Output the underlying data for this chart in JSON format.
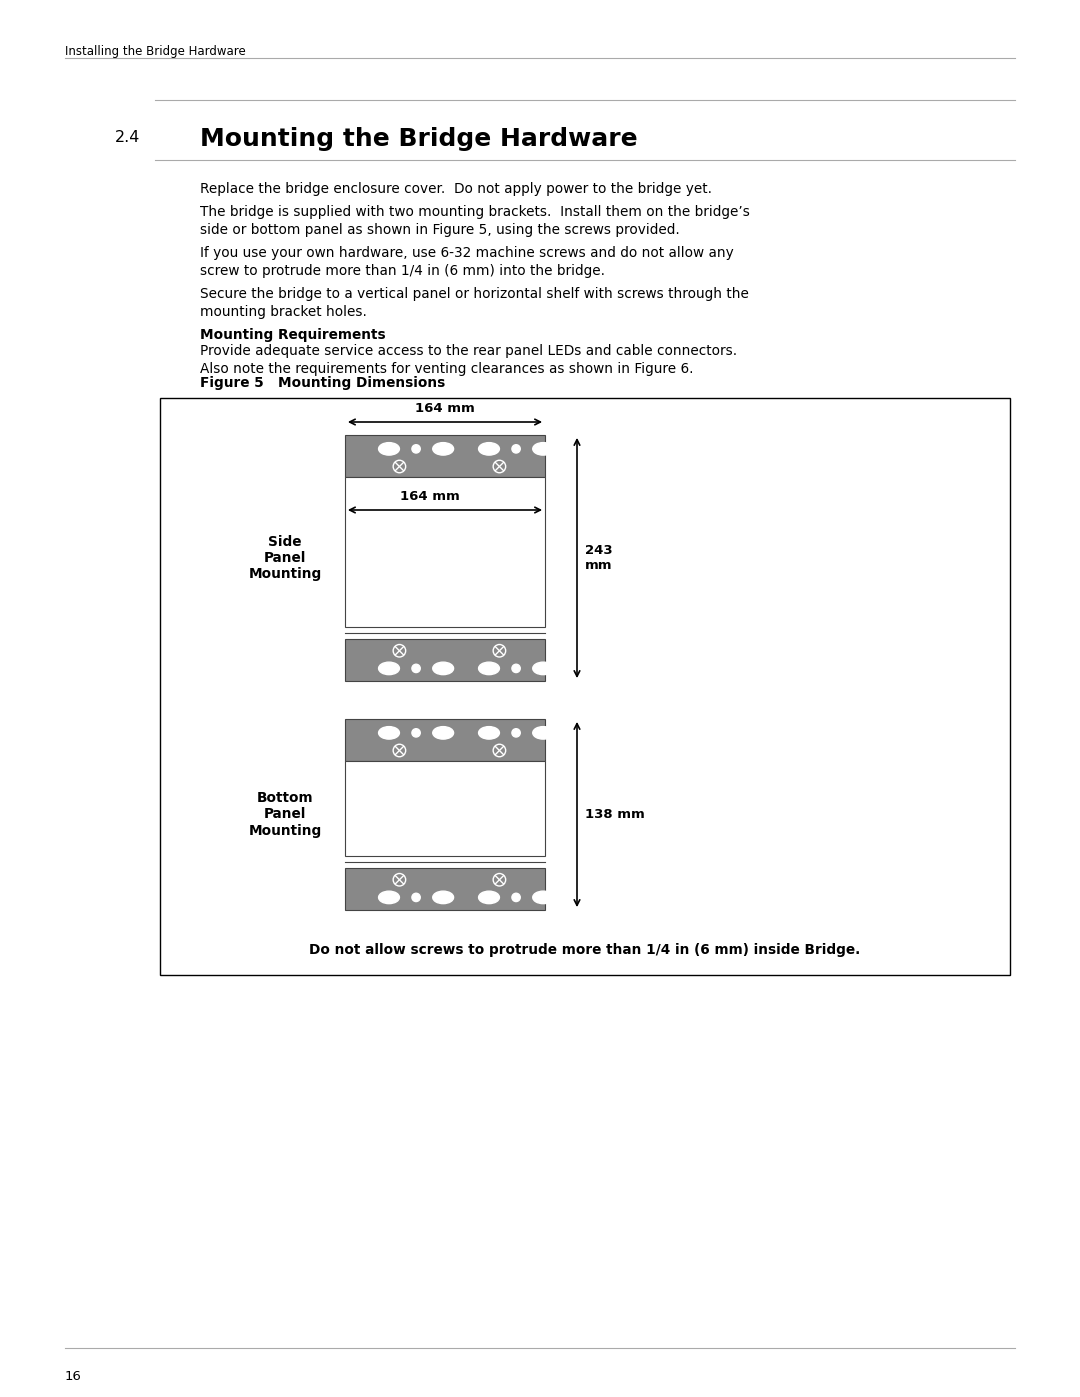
{
  "page_bg": "#ffffff",
  "header_text": "Installing the Bridge Hardware",
  "section_num": "2.4",
  "section_title": "Mounting the Bridge Hardware",
  "body_paragraphs": [
    "Replace the bridge enclosure cover.  Do not apply power to the bridge yet.",
    "The bridge is supplied with two mounting brackets.  Install them on the bridge’s\nside or bottom panel as shown in Figure 5, using the screws provided.",
    "If you use your own hardware, use 6‑32 machine screws and do not allow any\nscrew to protrude more than 1/4 in (6 mm) into the bridge.",
    "Secure the bridge to a vertical panel or horizontal shelf with screws through the\nmounting bracket holes."
  ],
  "mounting_req_title": "Mounting Requirements",
  "mounting_req_body": "Provide adequate service access to the rear panel LEDs and cable connectors.\nAlso note the requirements for venting clearances as shown in Figure 6.",
  "figure_label": "Figure 5   Mounting Dimensions",
  "dim_164_top": "164 mm",
  "dim_164_mid": "164 mm",
  "dim_243": "243\nmm",
  "dim_138": "138 mm",
  "side_label": "Side\nPanel\nMounting",
  "bottom_label": "Bottom\nPanel\nMounting",
  "warning_text": "Do not allow screws to protrude more than 1/4 in (6 mm) inside Bridge.",
  "page_number": "16",
  "bracket_color": "#888888",
  "bracket_border": "#444444",
  "header_line_color": "#aaaaaa",
  "fig_border_color": "#000000"
}
